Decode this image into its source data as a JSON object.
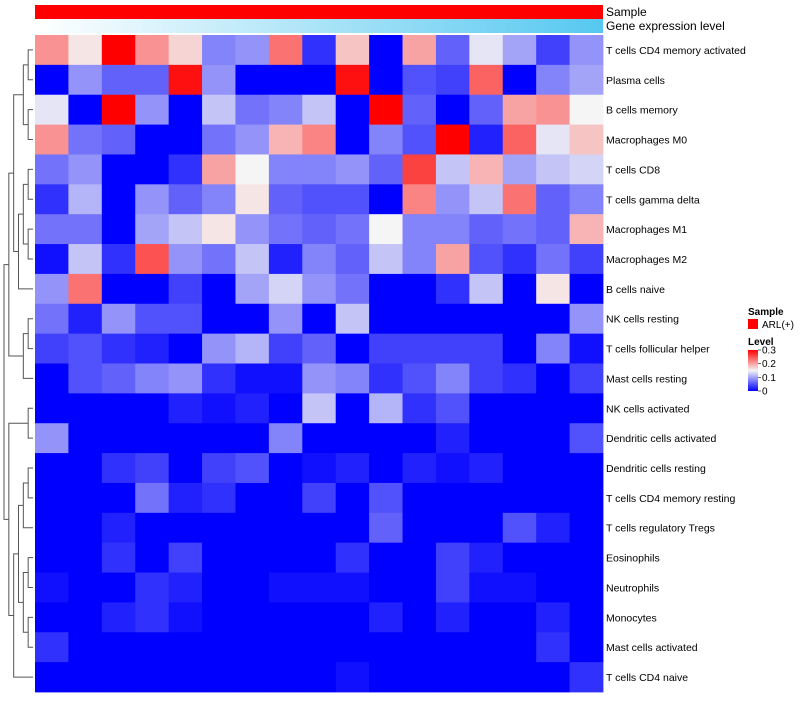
{
  "chart_data": {
    "type": "heatmap",
    "title": "",
    "annotation_tracks": [
      {
        "name": "Sample",
        "color_start": "#ff0000",
        "color_end": "#ff0000"
      },
      {
        "name": "Gene expression level",
        "color_start": "#ffffff",
        "color_end": "#56c8f0"
      }
    ],
    "rows": [
      "T cells CD4 memory activated",
      "Plasma cells",
      "B cells memory",
      "Macrophages M0",
      "T cells CD8",
      "T cells gamma delta",
      "Macrophages M1",
      "Macrophages M2",
      "B cells naive",
      "NK cells resting",
      "T cells follicular helper",
      "Mast cells resting",
      "NK cells activated",
      "Dendritic cells activated",
      "Dendritic cells resting",
      "T cells CD4 memory resting",
      "T cells regulatory  Tregs",
      "Eosinophils",
      "Neutrophils",
      "Monocytes",
      "Mast cells activated",
      "T cells CD4 naive"
    ],
    "n_columns": 17,
    "values": [
      [
        0.21,
        0.16,
        0.3,
        0.21,
        0.17,
        0.08,
        0.09,
        0.23,
        0.03,
        0.18,
        0.0,
        0.2,
        0.06,
        0.14,
        0.1,
        0.04,
        0.09
      ],
      [
        0.0,
        0.09,
        0.06,
        0.06,
        0.29,
        0.09,
        0.0,
        0.0,
        0.0,
        0.29,
        0.0,
        0.05,
        0.04,
        0.24,
        0.0,
        0.08,
        0.1
      ],
      [
        0.14,
        0.0,
        0.3,
        0.09,
        0.0,
        0.12,
        0.07,
        0.08,
        0.12,
        0.0,
        0.3,
        0.06,
        0.0,
        0.06,
        0.2,
        0.21,
        0.15
      ],
      [
        0.21,
        0.07,
        0.06,
        0.0,
        0.0,
        0.07,
        0.09,
        0.19,
        0.22,
        0.0,
        0.08,
        0.05,
        0.3,
        0.02,
        0.24,
        0.14,
        0.18
      ],
      [
        0.07,
        0.09,
        0.0,
        0.0,
        0.03,
        0.2,
        0.15,
        0.08,
        0.08,
        0.09,
        0.06,
        0.26,
        0.12,
        0.19,
        0.1,
        0.12,
        0.13
      ],
      [
        0.03,
        0.11,
        0.0,
        0.09,
        0.06,
        0.08,
        0.16,
        0.06,
        0.05,
        0.05,
        0.0,
        0.22,
        0.09,
        0.12,
        0.23,
        0.06,
        0.08
      ],
      [
        0.07,
        0.07,
        0.0,
        0.1,
        0.12,
        0.16,
        0.09,
        0.07,
        0.06,
        0.07,
        0.15,
        0.08,
        0.08,
        0.06,
        0.07,
        0.06,
        0.19
      ],
      [
        0.01,
        0.12,
        0.03,
        0.25,
        0.09,
        0.07,
        0.12,
        0.02,
        0.08,
        0.06,
        0.12,
        0.08,
        0.2,
        0.05,
        0.03,
        0.07,
        0.04
      ],
      [
        0.09,
        0.23,
        0.0,
        0.0,
        0.04,
        0.0,
        0.1,
        0.13,
        0.09,
        0.07,
        0.0,
        0.0,
        0.03,
        0.12,
        0.0,
        0.16,
        0.0
      ],
      [
        0.07,
        0.02,
        0.09,
        0.05,
        0.05,
        0.0,
        0.0,
        0.09,
        0.0,
        0.12,
        0.0,
        0.0,
        0.0,
        0.0,
        0.0,
        0.0,
        0.09
      ],
      [
        0.04,
        0.05,
        0.03,
        0.02,
        0.0,
        0.09,
        0.11,
        0.04,
        0.06,
        0.0,
        0.04,
        0.04,
        0.04,
        0.04,
        0.0,
        0.08,
        0.01
      ],
      [
        0.0,
        0.05,
        0.06,
        0.08,
        0.09,
        0.03,
        0.01,
        0.01,
        0.09,
        0.08,
        0.03,
        0.05,
        0.08,
        0.04,
        0.03,
        0.0,
        0.04
      ],
      [
        0.0,
        0.0,
        0.0,
        0.0,
        0.02,
        0.01,
        0.02,
        0.0,
        0.12,
        0.0,
        0.11,
        0.03,
        0.05,
        0.0,
        0.0,
        0.0,
        0.0
      ],
      [
        0.09,
        0.0,
        0.0,
        0.0,
        0.0,
        0.0,
        0.0,
        0.08,
        0.0,
        0.0,
        0.0,
        0.0,
        0.02,
        0.0,
        0.0,
        0.0,
        0.05
      ],
      [
        0.0,
        0.0,
        0.03,
        0.04,
        0.0,
        0.04,
        0.05,
        0.0,
        0.01,
        0.02,
        0.0,
        0.02,
        0.01,
        0.02,
        0.0,
        0.0,
        0.0
      ],
      [
        0.0,
        0.0,
        0.0,
        0.07,
        0.02,
        0.03,
        0.0,
        0.0,
        0.04,
        0.0,
        0.05,
        0.0,
        0.0,
        0.0,
        0.0,
        0.0,
        0.0
      ],
      [
        0.0,
        0.0,
        0.02,
        0.0,
        0.0,
        0.0,
        0.0,
        0.0,
        0.0,
        0.0,
        0.06,
        0.0,
        0.0,
        0.0,
        0.05,
        0.02,
        0.0
      ],
      [
        0.0,
        0.0,
        0.03,
        0.0,
        0.04,
        0.0,
        0.0,
        0.0,
        0.0,
        0.03,
        0.0,
        0.0,
        0.04,
        0.02,
        0.0,
        0.0,
        0.0
      ],
      [
        0.01,
        0.0,
        0.0,
        0.03,
        0.02,
        0.0,
        0.0,
        0.01,
        0.01,
        0.01,
        0.0,
        0.0,
        0.04,
        0.01,
        0.01,
        0.0,
        0.0
      ],
      [
        0.0,
        0.0,
        0.02,
        0.03,
        0.01,
        0.0,
        0.0,
        0.0,
        0.0,
        0.0,
        0.02,
        0.0,
        0.02,
        0.0,
        0.0,
        0.02,
        0.0
      ],
      [
        0.03,
        0.0,
        0.0,
        0.0,
        0.0,
        0.0,
        0.0,
        0.0,
        0.0,
        0.0,
        0.0,
        0.0,
        0.0,
        0.0,
        0.0,
        0.03,
        0.0
      ],
      [
        0.0,
        0.0,
        0.0,
        0.0,
        0.0,
        0.0,
        0.0,
        0.0,
        0.0,
        0.01,
        0.0,
        0.0,
        0.0,
        0.0,
        0.0,
        0.0,
        0.03
      ]
    ],
    "color_scale": {
      "min": 0,
      "mid": 0.15,
      "max": 0.3,
      "low": "#0000ff",
      "midpoint": "#f5f5f5",
      "high": "#ff0000"
    },
    "legend": {
      "sample_title": "Sample",
      "sample_entries": [
        {
          "label": "ARL(+)",
          "color": "#ff0000"
        }
      ],
      "level_title": "Level",
      "level_ticks": [
        {
          "value": 0.3,
          "label": "0.3"
        },
        {
          "value": 0.2,
          "label": "0.2"
        },
        {
          "value": 0.1,
          "label": "0.1"
        },
        {
          "value": 0,
          "label": "0"
        }
      ],
      "placement": "right"
    }
  }
}
